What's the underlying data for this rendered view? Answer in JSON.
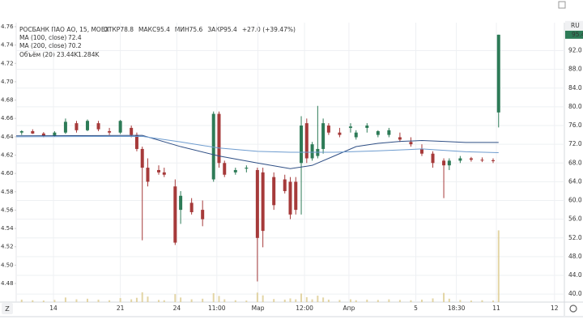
{
  "chart_data": {
    "type": "candlestick",
    "title": "РОСБАНК ПАО АО, 15, MOEX",
    "legend": [
      "ОТКР78.8",
      "МАКС95.4",
      "МИН75.6",
      "ЗАКР95.4",
      "+27.0 (+39.47%)"
    ],
    "x": [
      1,
      3,
      5,
      7,
      9,
      11,
      13,
      15,
      17,
      19,
      21,
      22,
      23,
      24,
      26,
      27,
      29,
      30,
      32,
      34,
      36,
      37,
      38,
      40,
      42,
      44,
      45,
      47,
      49,
      50,
      51,
      52,
      53,
      54,
      55,
      56,
      57,
      59,
      61,
      62,
      64,
      66,
      68,
      70,
      72,
      74,
      76,
      78,
      79,
      81,
      83,
      85,
      87,
      88
    ],
    "open": [
      74.5,
      74.8,
      74.3,
      73.8,
      74.5,
      76.5,
      75.0,
      76.5,
      74.8,
      74.5,
      75.5,
      74.0,
      71.0,
      67.0,
      66.5,
      66.0,
      63.0,
      58.0,
      59.5,
      58.0,
      64.5,
      78.5,
      68.0,
      66.0,
      66.8,
      66.5,
      66.0,
      65.0,
      64.5,
      64.0,
      64.0,
      68.0,
      76.5,
      69.0,
      69.5,
      71.0,
      76.0,
      74.5,
      75.5,
      73.5,
      75.5,
      74.0,
      74.0,
      73.5,
      72.5,
      71.0,
      70.0,
      68.5,
      67.5,
      68.5,
      69.0,
      68.7,
      68.6,
      78.8
    ],
    "high": [
      75.0,
      75.2,
      74.6,
      74.8,
      77.5,
      77.0,
      77.3,
      77.0,
      75.5,
      77.2,
      76.0,
      74.5,
      71.5,
      69.0,
      67.5,
      67.0,
      64.5,
      62.0,
      60.5,
      60.0,
      79.0,
      79.0,
      68.5,
      67.0,
      67.5,
      67.0,
      67.0,
      66.0,
      65.5,
      65.0,
      65.0,
      78.0,
      77.5,
      72.5,
      80.2,
      77.5,
      76.5,
      75.5,
      76.5,
      75.0,
      76.5,
      75.0,
      75.5,
      74.5,
      73.5,
      72.0,
      70.5,
      69.0,
      69.0,
      69.5,
      69.3,
      69.2,
      69.0,
      95.4
    ],
    "low": [
      74.0,
      74.2,
      73.5,
      73.6,
      74.2,
      74.5,
      74.8,
      74.8,
      74.0,
      74.2,
      73.5,
      70.5,
      51.5,
      63.0,
      65.5,
      65.0,
      50.5,
      55.0,
      57.0,
      54.5,
      64.0,
      67.0,
      65.0,
      65.5,
      66.0,
      42.7,
      50.0,
      58.0,
      61.5,
      56.0,
      57.0,
      57.0,
      68.0,
      68.5,
      69.0,
      70.0,
      74.0,
      73.5,
      74.5,
      73.0,
      74.5,
      73.5,
      73.5,
      72.5,
      71.5,
      69.5,
      67.0,
      60.5,
      66.5,
      68.0,
      68.3,
      68.2,
      68.0,
      75.6
    ],
    "close": [
      74.8,
      74.3,
      73.8,
      74.5,
      76.8,
      75.0,
      77.0,
      75.2,
      74.5,
      77.0,
      74.0,
      71.0,
      67.0,
      64.0,
      66.0,
      65.5,
      51.0,
      61.0,
      57.5,
      56.0,
      78.5,
      68.0,
      65.5,
      66.5,
      67.0,
      52.0,
      53.5,
      59.0,
      62.0,
      57.0,
      58.0,
      76.0,
      69.0,
      72.0,
      71.0,
      76.5,
      74.5,
      74.0,
      75.8,
      74.5,
      76.0,
      74.8,
      75.0,
      73.0,
      72.0,
      70.0,
      68.0,
      67.5,
      68.5,
      69.0,
      68.7,
      68.6,
      68.4,
      95.4
    ],
    "volume": [
      800,
      600,
      500,
      700,
      1500,
      900,
      1100,
      800,
      600,
      1300,
      900,
      1400,
      3200,
      1800,
      700,
      600,
      2600,
      1500,
      900,
      1100,
      2900,
      2000,
      900,
      600,
      500,
      3100,
      2200,
      1000,
      800,
      1200,
      900,
      2800,
      1600,
      900,
      2100,
      1500,
      800,
      700,
      900,
      600,
      800,
      700,
      900,
      700,
      600,
      800,
      1200,
      3000,
      1100,
      700,
      500,
      600,
      500,
      23440
    ],
    "vlim": [
      0,
      90000
    ],
    "volume_name": "Объём (20)",
    "volume_labels": [
      "23.44K",
      "1.284K"
    ],
    "ma": [
      {
        "name": "MA (100, close)",
        "value_label": "72.4",
        "color": "#2f4f85",
        "x": [
          0,
          23,
          30,
          37,
          44,
          50,
          54,
          58,
          62,
          66,
          70,
          74,
          78,
          82,
          88
        ],
        "values": [
          73.8,
          73.9,
          71.5,
          69.5,
          68.0,
          66.8,
          67.5,
          69.5,
          71.5,
          72.2,
          72.6,
          72.8,
          72.6,
          72.4,
          72.4
        ]
      },
      {
        "name": "MA (200, close)",
        "value_label": "70.2",
        "color": "#6e9ccf",
        "x": [
          0,
          23,
          30,
          37,
          44,
          50,
          58,
          66,
          74,
          82,
          88
        ],
        "values": [
          73.6,
          73.7,
          72.5,
          71.2,
          70.5,
          70.3,
          70.3,
          70.6,
          71.0,
          70.4,
          70.2
        ]
      }
    ],
    "up_color": "#2d7b57",
    "down_color": "#a63a3a",
    "volume_color": "#dccb8e",
    "xlim": [
      0,
      100
    ],
    "xticks": [
      {
        "value": 6.8,
        "label": "14"
      },
      {
        "value": 19,
        "label": "21"
      },
      {
        "value": 29.3,
        "label": "24"
      },
      {
        "value": 36.6,
        "label": "11:00"
      },
      {
        "value": 44.1,
        "label": "Мар"
      },
      {
        "value": 52.6,
        "label": "12:00"
      },
      {
        "value": 60.7,
        "label": "Апр"
      },
      {
        "value": 72.9,
        "label": "5"
      },
      {
        "value": 80.3,
        "label": "18:30"
      },
      {
        "value": 87.6,
        "label": "11"
      },
      {
        "value": 98.2,
        "label": "12"
      }
    ],
    "ylim": [
      4.4597,
      4.7644
    ],
    "yticks": [
      4.76,
      4.74,
      4.72,
      {
        "value": 4.7,
        "label": "4.70"
      },
      4.68,
      4.66,
      4.64,
      4.62,
      {
        "value": 4.6,
        "label": "4.60"
      },
      4.58,
      4.56,
      4.54,
      4.52,
      {
        "value": 4.5,
        "label": "4.50"
      },
      4.48
    ],
    "y2lim": [
      38.3,
      97.97
    ],
    "y2ticks": [
      {
        "value": 92,
        "label": "92.0"
      },
      {
        "value": 88,
        "label": "88.0"
      },
      {
        "value": 84,
        "label": "84.0"
      },
      {
        "value": 80,
        "label": "80.0"
      },
      {
        "value": 76,
        "label": "76.0"
      },
      {
        "value": 72,
        "label": "72.0"
      },
      {
        "value": 68,
        "label": "68.0"
      },
      {
        "value": 64,
        "label": "64.0"
      },
      {
        "value": 60,
        "label": "60.0"
      },
      {
        "value": 56,
        "label": "56.0"
      },
      {
        "value": 52,
        "label": "52.0"
      },
      {
        "value": 48,
        "label": "48.0"
      },
      {
        "value": 44,
        "label": "44.0"
      },
      {
        "value": 40,
        "label": "40.0"
      }
    ],
    "last_price": 95.4,
    "currency_label": "RU",
    "grid": true
  }
}
